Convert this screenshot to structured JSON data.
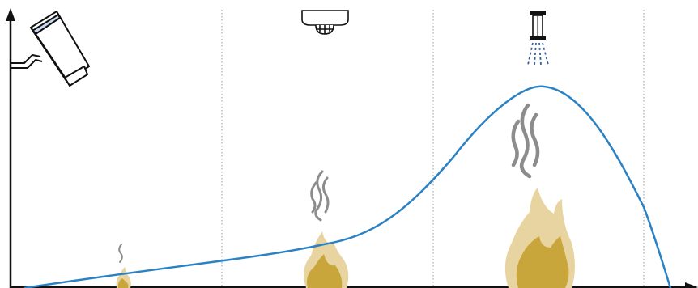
{
  "diagram": {
    "kind": "fire-growth-curve",
    "axes": {
      "x_arrow": true,
      "y_arrow": true
    },
    "stage_dividers": 4,
    "icons": [
      {
        "name": "security-camera-icon",
        "stage": 0
      },
      {
        "name": "smoke-detector-icon",
        "stage": 2
      },
      {
        "name": "sprinkler-icon",
        "stage": 3
      }
    ],
    "fires": [
      {
        "name": "fire-stage-1-icon",
        "size": "small"
      },
      {
        "name": "fire-stage-2-icon",
        "size": "medium"
      },
      {
        "name": "fire-stage-3-icon",
        "size": "large"
      }
    ],
    "colors": {
      "curve": "#2a82c4",
      "axis": "#111111",
      "divider": "#9a9a9a",
      "flame_outer": "#e8d4a0",
      "flame_inner": "#c8a63c",
      "smoke": "#8c8c8c",
      "spray": "#3a5f9e",
      "camera_lens": "#c8d8f0"
    }
  }
}
